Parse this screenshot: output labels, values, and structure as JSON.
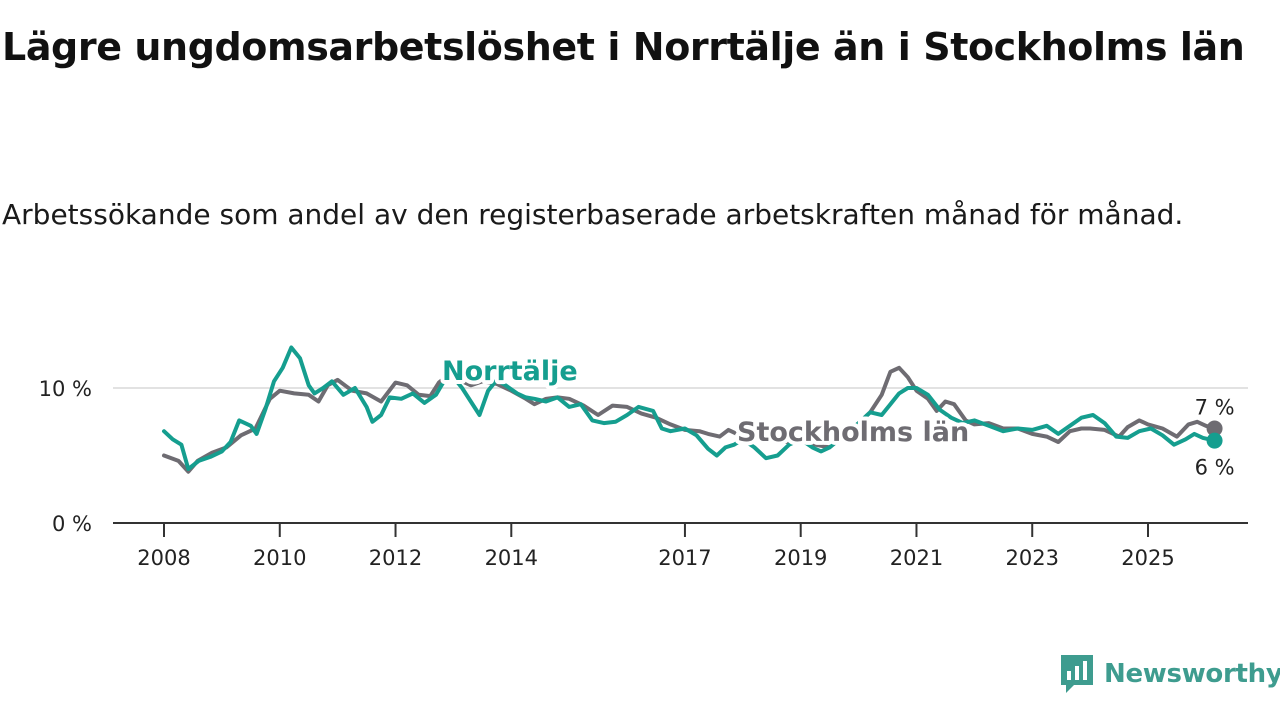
{
  "title": "Lägre ungdomsarbetslöshet i Norrtälje än i Stockholms län",
  "subtitle": "Arbetssökande som andel av den registerbaserade arbetskraften månad för månad.",
  "brand": {
    "name": "Newsworthy",
    "color": "#3e9c8f",
    "icon": "newsworthy-logo-icon"
  },
  "chart_data": {
    "type": "line",
    "title": "Lägre ungdomsarbetslöshet i Norrtälje än i Stockholms län",
    "xlabel": "",
    "ylabel": "",
    "xlim": [
      2008,
      2026.5
    ],
    "ylim": [
      0,
      12
    ],
    "y_ticks": [
      {
        "value": 0,
        "label": "0 %"
      },
      {
        "value": 10,
        "label": "10 %"
      }
    ],
    "x_ticks": [
      {
        "value": 2008,
        "label": "2008"
      },
      {
        "value": 2010,
        "label": "2010"
      },
      {
        "value": 2012,
        "label": "2012"
      },
      {
        "value": 2014,
        "label": "2014"
      },
      {
        "value": 2017,
        "label": "2017"
      },
      {
        "value": 2019,
        "label": "2019"
      },
      {
        "value": 2021,
        "label": "2021"
      },
      {
        "value": 2023,
        "label": "2023"
      },
      {
        "value": 2025,
        "label": "2025"
      }
    ],
    "series": [
      {
        "name": "Stockholms län",
        "color": "#6e6c72",
        "end_label": "7 %",
        "points": [
          [
            2008.0,
            5.0
          ],
          [
            2008.25,
            4.6
          ],
          [
            2008.42,
            3.8
          ],
          [
            2008.58,
            4.6
          ],
          [
            2008.83,
            5.2
          ],
          [
            2009.08,
            5.6
          ],
          [
            2009.33,
            6.5
          ],
          [
            2009.58,
            7.0
          ],
          [
            2009.83,
            9.2
          ],
          [
            2010.0,
            9.8
          ],
          [
            2010.25,
            9.6
          ],
          [
            2010.5,
            9.5
          ],
          [
            2010.67,
            9.0
          ],
          [
            2010.83,
            10.2
          ],
          [
            2011.0,
            10.6
          ],
          [
            2011.25,
            9.8
          ],
          [
            2011.5,
            9.6
          ],
          [
            2011.75,
            9.0
          ],
          [
            2012.0,
            10.4
          ],
          [
            2012.2,
            10.2
          ],
          [
            2012.4,
            9.5
          ],
          [
            2012.6,
            9.4
          ],
          [
            2012.75,
            10.4
          ],
          [
            2012.92,
            11.0
          ],
          [
            2013.1,
            10.6
          ],
          [
            2013.3,
            10.2
          ],
          [
            2013.5,
            10.5
          ],
          [
            2013.75,
            10.3
          ],
          [
            2014.0,
            9.8
          ],
          [
            2014.25,
            9.2
          ],
          [
            2014.4,
            8.8
          ],
          [
            2014.6,
            9.2
          ],
          [
            2014.8,
            9.3
          ],
          [
            2015.0,
            9.2
          ],
          [
            2015.25,
            8.7
          ],
          [
            2015.5,
            8.0
          ],
          [
            2015.75,
            8.7
          ],
          [
            2016.0,
            8.6
          ],
          [
            2016.25,
            8.1
          ],
          [
            2016.5,
            7.8
          ],
          [
            2016.75,
            7.3
          ],
          [
            2017.0,
            6.9
          ],
          [
            2017.25,
            6.8
          ],
          [
            2017.4,
            6.6
          ],
          [
            2017.6,
            6.4
          ],
          [
            2017.75,
            6.9
          ],
          [
            2017.9,
            6.6
          ],
          [
            2018.1,
            6.4
          ],
          [
            2018.3,
            6.1
          ],
          [
            2018.5,
            6.2
          ],
          [
            2018.75,
            6.0
          ],
          [
            2019.0,
            6.1
          ],
          [
            2019.25,
            5.8
          ],
          [
            2019.5,
            5.6
          ],
          [
            2019.75,
            6.5
          ],
          [
            2020.0,
            7.4
          ],
          [
            2020.2,
            8.2
          ],
          [
            2020.4,
            9.5
          ],
          [
            2020.55,
            11.2
          ],
          [
            2020.7,
            11.5
          ],
          [
            2020.85,
            10.8
          ],
          [
            2021.0,
            9.8
          ],
          [
            2021.2,
            9.2
          ],
          [
            2021.35,
            8.3
          ],
          [
            2021.5,
            9.0
          ],
          [
            2021.65,
            8.8
          ],
          [
            2021.85,
            7.6
          ],
          [
            2022.0,
            7.3
          ],
          [
            2022.25,
            7.4
          ],
          [
            2022.5,
            7.0
          ],
          [
            2022.75,
            7.0
          ],
          [
            2023.0,
            6.6
          ],
          [
            2023.25,
            6.4
          ],
          [
            2023.45,
            6.0
          ],
          [
            2023.65,
            6.8
          ],
          [
            2023.85,
            7.0
          ],
          [
            2024.0,
            7.0
          ],
          [
            2024.25,
            6.9
          ],
          [
            2024.5,
            6.4
          ],
          [
            2024.65,
            7.1
          ],
          [
            2024.85,
            7.6
          ],
          [
            2025.0,
            7.3
          ],
          [
            2025.25,
            7.0
          ],
          [
            2025.5,
            6.4
          ],
          [
            2025.7,
            7.3
          ],
          [
            2025.85,
            7.5
          ],
          [
            2026.0,
            7.2
          ],
          [
            2026.15,
            7.0
          ]
        ]
      },
      {
        "name": "Norrtälje",
        "color": "#159e8f",
        "end_label": "6 %",
        "points": [
          [
            2008.0,
            6.8
          ],
          [
            2008.15,
            6.2
          ],
          [
            2008.3,
            5.8
          ],
          [
            2008.42,
            4.0
          ],
          [
            2008.6,
            4.6
          ],
          [
            2008.8,
            4.9
          ],
          [
            2009.0,
            5.3
          ],
          [
            2009.15,
            6.0
          ],
          [
            2009.3,
            7.6
          ],
          [
            2009.5,
            7.2
          ],
          [
            2009.6,
            6.6
          ],
          [
            2009.75,
            8.4
          ],
          [
            2009.9,
            10.5
          ],
          [
            2010.05,
            11.5
          ],
          [
            2010.2,
            13.0
          ],
          [
            2010.35,
            12.2
          ],
          [
            2010.5,
            10.2
          ],
          [
            2010.6,
            9.6
          ],
          [
            2010.75,
            10.0
          ],
          [
            2010.9,
            10.5
          ],
          [
            2011.1,
            9.5
          ],
          [
            2011.3,
            10.0
          ],
          [
            2011.5,
            8.6
          ],
          [
            2011.6,
            7.5
          ],
          [
            2011.75,
            8.0
          ],
          [
            2011.9,
            9.3
          ],
          [
            2012.1,
            9.2
          ],
          [
            2012.3,
            9.6
          ],
          [
            2012.5,
            8.9
          ],
          [
            2012.7,
            9.5
          ],
          [
            2012.85,
            10.6
          ],
          [
            2013.0,
            10.8
          ],
          [
            2013.15,
            10.0
          ],
          [
            2013.3,
            9.0
          ],
          [
            2013.45,
            8.0
          ],
          [
            2013.6,
            9.8
          ],
          [
            2013.75,
            10.6
          ],
          [
            2013.9,
            10.2
          ],
          [
            2014.1,
            9.6
          ],
          [
            2014.25,
            9.3
          ],
          [
            2014.4,
            9.2
          ],
          [
            2014.6,
            9.0
          ],
          [
            2014.8,
            9.3
          ],
          [
            2015.0,
            8.6
          ],
          [
            2015.2,
            8.8
          ],
          [
            2015.4,
            7.6
          ],
          [
            2015.6,
            7.4
          ],
          [
            2015.8,
            7.5
          ],
          [
            2016.0,
            8.0
          ],
          [
            2016.2,
            8.6
          ],
          [
            2016.45,
            8.3
          ],
          [
            2016.6,
            7.0
          ],
          [
            2016.75,
            6.8
          ],
          [
            2017.0,
            7.0
          ],
          [
            2017.2,
            6.5
          ],
          [
            2017.4,
            5.5
          ],
          [
            2017.55,
            5.0
          ],
          [
            2017.7,
            5.6
          ],
          [
            2017.85,
            5.8
          ],
          [
            2018.0,
            6.2
          ],
          [
            2018.2,
            5.6
          ],
          [
            2018.4,
            4.8
          ],
          [
            2018.6,
            5.0
          ],
          [
            2018.8,
            5.8
          ],
          [
            2019.0,
            6.2
          ],
          [
            2019.2,
            5.6
          ],
          [
            2019.35,
            5.3
          ],
          [
            2019.5,
            5.6
          ],
          [
            2019.75,
            6.5
          ],
          [
            2020.0,
            7.4
          ],
          [
            2020.2,
            8.2
          ],
          [
            2020.4,
            8.0
          ],
          [
            2020.55,
            8.8
          ],
          [
            2020.7,
            9.6
          ],
          [
            2020.85,
            10.0
          ],
          [
            2021.0,
            10.0
          ],
          [
            2021.2,
            9.5
          ],
          [
            2021.4,
            8.4
          ],
          [
            2021.6,
            7.8
          ],
          [
            2021.8,
            7.4
          ],
          [
            2022.0,
            7.6
          ],
          [
            2022.25,
            7.2
          ],
          [
            2022.5,
            6.8
          ],
          [
            2022.75,
            7.0
          ],
          [
            2023.0,
            6.9
          ],
          [
            2023.25,
            7.2
          ],
          [
            2023.45,
            6.6
          ],
          [
            2023.65,
            7.2
          ],
          [
            2023.85,
            7.8
          ],
          [
            2024.05,
            8.0
          ],
          [
            2024.25,
            7.4
          ],
          [
            2024.45,
            6.4
          ],
          [
            2024.65,
            6.3
          ],
          [
            2024.85,
            6.8
          ],
          [
            2025.05,
            7.0
          ],
          [
            2025.25,
            6.5
          ],
          [
            2025.45,
            5.8
          ],
          [
            2025.65,
            6.2
          ],
          [
            2025.8,
            6.6
          ],
          [
            2025.95,
            6.3
          ],
          [
            2026.15,
            6.1
          ]
        ]
      }
    ],
    "annotations": [
      {
        "series": "Norrtälje",
        "text": "Norrtälje"
      },
      {
        "series": "Stockholms län",
        "text": "Stockholms län"
      }
    ]
  }
}
